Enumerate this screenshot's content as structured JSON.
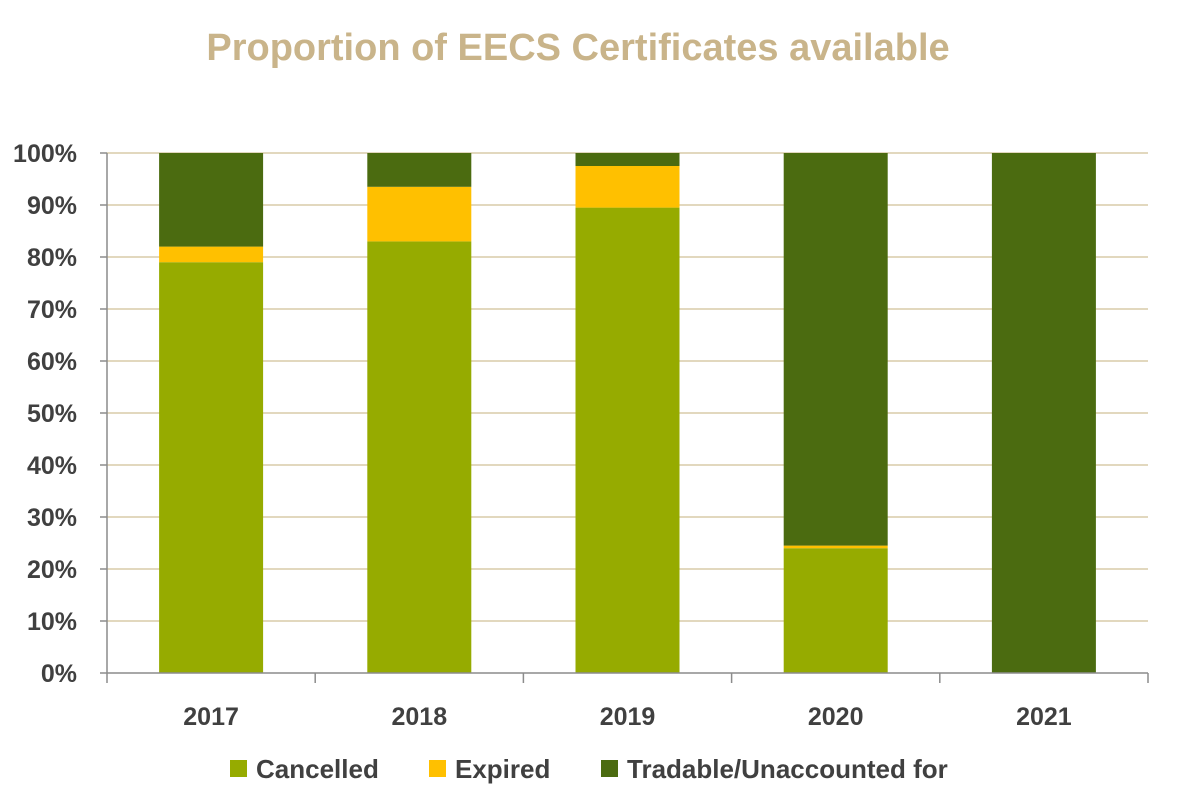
{
  "chart_data": {
    "type": "bar",
    "stacked": true,
    "title": "Proportion of EECS Certificates available",
    "categories": [
      "2017",
      "2018",
      "2019",
      "2020",
      "2021"
    ],
    "series": [
      {
        "name": "Cancelled",
        "color": "#96ab00",
        "values": [
          79,
          83,
          89.5,
          24,
          0
        ]
      },
      {
        "name": "Expired",
        "color": "#ffc000",
        "values": [
          3,
          10.5,
          8,
          0.5,
          0
        ]
      },
      {
        "name": "Tradable/Unaccounted for",
        "color": "#4b6b10",
        "values": [
          18,
          6.5,
          2.5,
          75.5,
          100
        ]
      }
    ],
    "ylim": [
      0,
      100
    ],
    "yticks": [
      "0%",
      "10%",
      "20%",
      "30%",
      "40%",
      "50%",
      "60%",
      "70%",
      "80%",
      "90%",
      "100%"
    ],
    "grid": true,
    "legend_position": "bottom",
    "colors": {
      "title": "#c9b48a",
      "grid": "#d9cba9",
      "axis": "#8c8c8c",
      "text": "#404040"
    }
  }
}
